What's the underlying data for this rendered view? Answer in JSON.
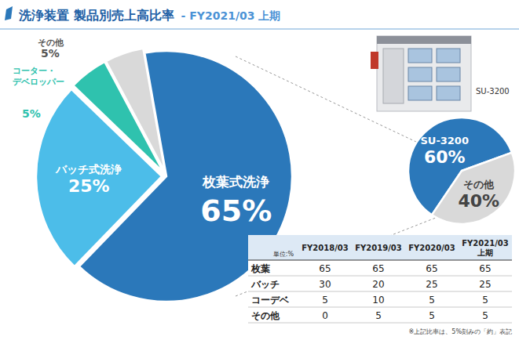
{
  "title": "洗浄装置 製品別売上高比率",
  "subtitle": "- FY2021/03 上期",
  "image_label": "SU-3200",
  "chart_data": [
    {
      "type": "pie",
      "categories": [
        "枚葉式洗浄",
        "バッチ式洗浄",
        "コーター・デベロッパー",
        "その他"
      ],
      "values": [
        65,
        25,
        5,
        5
      ],
      "value_labels": [
        "65%",
        "25%",
        "5%",
        "5%"
      ],
      "colors": [
        "#2b78ba",
        "#4cbde9",
        "#2fc2ae",
        "#d9d9d9"
      ],
      "data_labels": true
    },
    {
      "type": "pie",
      "categories": [
        "SU-3200",
        "その他"
      ],
      "values": [
        60,
        40
      ],
      "value_labels": [
        "60%",
        "40%"
      ],
      "colors": [
        "#2b78ba",
        "#d9d9d9"
      ],
      "data_labels": true
    }
  ],
  "table": {
    "unit": "単位:%",
    "columns": [
      "FY2018/03",
      "FY2019/03",
      "FY2020/03",
      "FY2021/03 上期"
    ],
    "rows": [
      [
        "枚葉",
        65,
        65,
        65,
        65
      ],
      [
        "バッチ",
        30,
        20,
        25,
        25
      ],
      [
        "コーデベ",
        5,
        10,
        5,
        5
      ],
      [
        "その他",
        0,
        5,
        5,
        5
      ]
    ]
  },
  "note": "※上記比率は、5%刻みの「約」表記"
}
